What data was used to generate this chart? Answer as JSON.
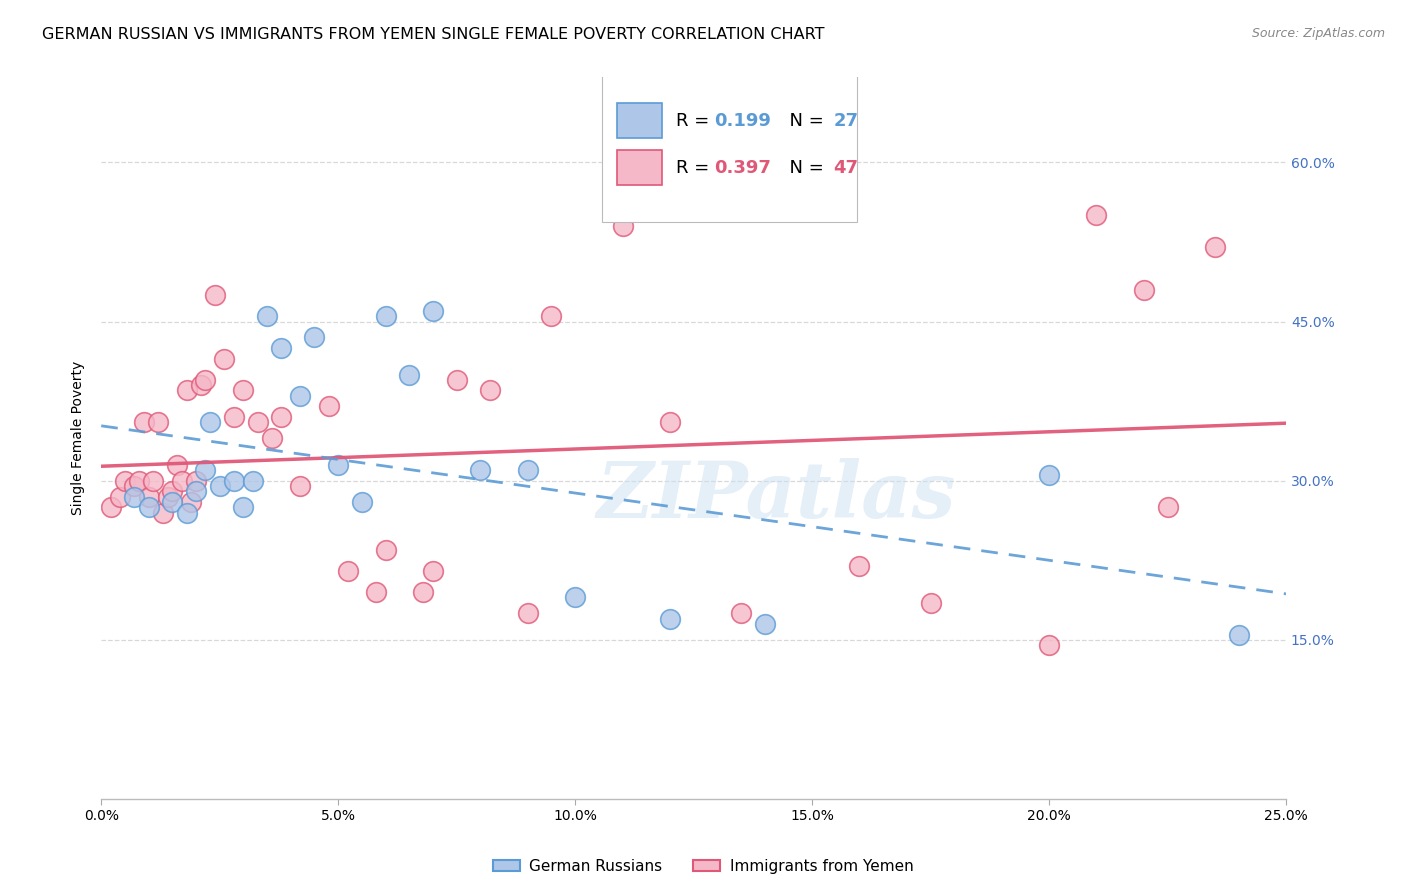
{
  "title": "GERMAN RUSSIAN VS IMMIGRANTS FROM YEMEN SINGLE FEMALE POVERTY CORRELATION CHART",
  "source": "Source: ZipAtlas.com",
  "ylabel": "Single Female Poverty",
  "xlim": [
    0.0,
    0.25
  ],
  "ylim": [
    0.0,
    0.68
  ],
  "blue_R": 0.199,
  "blue_N": 27,
  "pink_R": 0.397,
  "pink_N": 47,
  "blue_color": "#aec6e8",
  "pink_color": "#f5b8c8",
  "blue_line_color": "#5b9bd5",
  "pink_line_color": "#e05878",
  "legend_blue_R_val": "0.199",
  "legend_blue_N_val": "27",
  "legend_pink_R_val": "0.397",
  "legend_pink_N_val": "47",
  "blue_scatter_x": [
    0.007,
    0.01,
    0.015,
    0.018,
    0.02,
    0.022,
    0.023,
    0.025,
    0.028,
    0.03,
    0.032,
    0.035,
    0.038,
    0.042,
    0.045,
    0.05,
    0.055,
    0.06,
    0.065,
    0.07,
    0.08,
    0.09,
    0.1,
    0.12,
    0.14,
    0.2,
    0.24
  ],
  "blue_scatter_y": [
    0.285,
    0.275,
    0.28,
    0.27,
    0.29,
    0.31,
    0.355,
    0.295,
    0.3,
    0.275,
    0.3,
    0.455,
    0.425,
    0.38,
    0.435,
    0.315,
    0.28,
    0.455,
    0.4,
    0.46,
    0.31,
    0.31,
    0.19,
    0.17,
    0.165,
    0.305,
    0.155
  ],
  "pink_scatter_x": [
    0.002,
    0.004,
    0.005,
    0.007,
    0.008,
    0.009,
    0.01,
    0.011,
    0.012,
    0.013,
    0.014,
    0.015,
    0.016,
    0.017,
    0.018,
    0.019,
    0.02,
    0.021,
    0.022,
    0.024,
    0.026,
    0.028,
    0.03,
    0.033,
    0.036,
    0.038,
    0.042,
    0.048,
    0.052,
    0.058,
    0.06,
    0.068,
    0.07,
    0.075,
    0.082,
    0.09,
    0.095,
    0.11,
    0.12,
    0.135,
    0.16,
    0.175,
    0.2,
    0.21,
    0.22,
    0.225,
    0.235
  ],
  "pink_scatter_y": [
    0.275,
    0.285,
    0.3,
    0.295,
    0.3,
    0.355,
    0.285,
    0.3,
    0.355,
    0.27,
    0.285,
    0.29,
    0.315,
    0.3,
    0.385,
    0.28,
    0.3,
    0.39,
    0.395,
    0.475,
    0.415,
    0.36,
    0.385,
    0.355,
    0.34,
    0.36,
    0.295,
    0.37,
    0.215,
    0.195,
    0.235,
    0.195,
    0.215,
    0.395,
    0.385,
    0.175,
    0.455,
    0.54,
    0.355,
    0.175,
    0.22,
    0.185,
    0.145,
    0.55,
    0.48,
    0.275,
    0.52
  ],
  "grid_color": "#d8d8d8",
  "background_color": "#ffffff",
  "title_fontsize": 11.5,
  "axis_label_fontsize": 10,
  "tick_fontsize": 10,
  "legend_fontsize": 13,
  "watermark_text": "ZIPatlas",
  "bottom_legend": [
    "German Russians",
    "Immigrants from Yemen"
  ],
  "yticks": [
    0.15,
    0.3,
    0.45,
    0.6
  ],
  "ytick_labels": [
    "15.0%",
    "30.0%",
    "45.0%",
    "60.0%"
  ],
  "xticks": [
    0.0,
    0.05,
    0.1,
    0.15,
    0.2,
    0.25
  ],
  "xtick_labels": [
    "0.0%",
    "5.0%",
    "10.0%",
    "15.0%",
    "20.0%",
    "25.0%"
  ]
}
